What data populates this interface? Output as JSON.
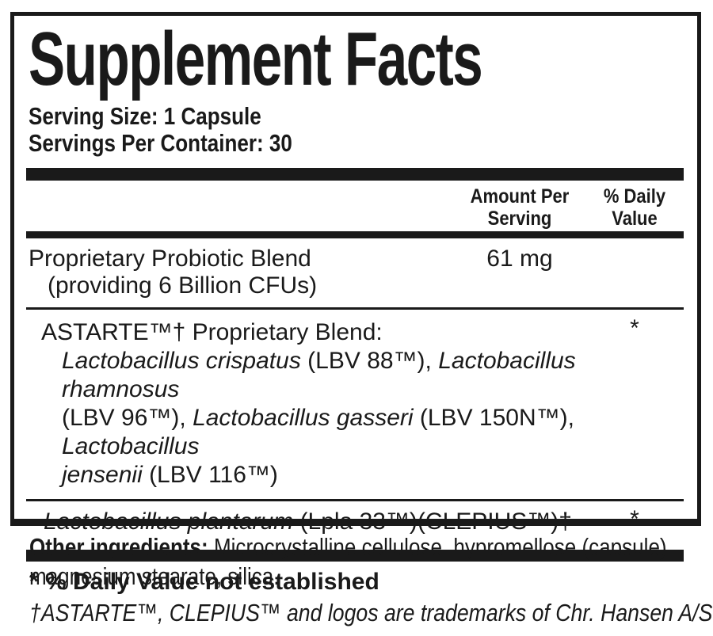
{
  "colors": {
    "ink": "#1a1a1a",
    "background": "#ffffff"
  },
  "panel": {
    "title": "Supplement Facts",
    "serving_size": "Serving Size: 1 Capsule",
    "servings_per_container": "Servings Per Container: 30",
    "columns": {
      "amount_per": "Amount Per",
      "serving": "Serving",
      "percent_daily": "% Daily",
      "value": "Value"
    },
    "rows": {
      "probiotic": {
        "name": "Proprietary Probiotic Blend",
        "detail": "(providing 6 Billion CFUs)",
        "amount": "61 mg",
        "daily_value": ""
      },
      "astarte": {
        "heading": "ASTARTE™† Proprietary Blend:",
        "daily_value": "*",
        "line1_species1": "Lactobacillus crispatus",
        "line1_strain1": " (LBV 88™), ",
        "line1_species2": "Lactobacillus rhamnosus",
        "line2_strain1": "(LBV 96™), ",
        "line2_species1": "Lactobacillus gasseri",
        "line2_strain2": " (LBV 150N™), ",
        "line2_species2": "Lactobacillus",
        "line3_species1": "jensenii",
        "line3_strain1": " (LBV 116™)"
      },
      "plantarum": {
        "species": "Lactobacillus plantarum",
        "strain": " (Lpla 33™)(CLEPIUS™)†",
        "daily_value": "*"
      }
    },
    "footnote": "* % Daily Value not established"
  },
  "footer": {
    "other_ingredients_label": "Other ingredients:",
    "other_ingredients_line1": " Microcrystalline cellulose, hypromellose (capsule),",
    "other_ingredients_line2": "magnesium stearate, silica.",
    "trademark_note": "†ASTARTE™, CLEPIUS™ and logos are trademarks of Chr. Hansen A/S"
  }
}
